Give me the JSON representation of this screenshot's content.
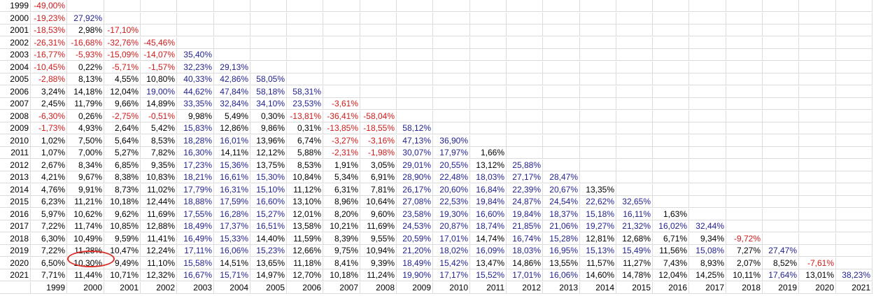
{
  "colors": {
    "negative": "#d11a1a",
    "high": "#1f1f8f",
    "normal": "#000000",
    "highlight_circle": "#d9302a"
  },
  "start_years": [
    "1999",
    "2000",
    "2001",
    "2002",
    "2003",
    "2004",
    "2005",
    "2006",
    "2007",
    "2008",
    "2009",
    "2010",
    "2011",
    "2012",
    "2013",
    "2014",
    "2015",
    "2016",
    "2017",
    "2018",
    "2019",
    "2020",
    "2021"
  ],
  "rows": [
    {
      "end_year": "1999",
      "values": [
        "-49,00%"
      ]
    },
    {
      "end_year": "2000",
      "values": [
        "-19,23%",
        "27,92%"
      ]
    },
    {
      "end_year": "2001",
      "values": [
        "-18,53%",
        "2,98%",
        "-17,10%"
      ]
    },
    {
      "end_year": "2002",
      "values": [
        "-26,31%",
        "-16,68%",
        "-32,76%",
        "-45,46%"
      ]
    },
    {
      "end_year": "2003",
      "values": [
        "-16,77%",
        "-5,93%",
        "-15,09%",
        "-14,07%",
        "35,40%"
      ]
    },
    {
      "end_year": "2004",
      "values": [
        "-10,45%",
        "0,22%",
        "-5,71%",
        "-1,57%",
        "32,23%",
        "29,13%"
      ]
    },
    {
      "end_year": "2005",
      "values": [
        "-2,88%",
        "8,13%",
        "4,55%",
        "10,80%",
        "40,33%",
        "42,86%",
        "58,05%"
      ]
    },
    {
      "end_year": "2006",
      "values": [
        "3,24%",
        "14,18%",
        "12,04%",
        "19,00%",
        "44,62%",
        "47,84%",
        "58,18%",
        "58,31%"
      ]
    },
    {
      "end_year": "2007",
      "values": [
        "2,45%",
        "11,79%",
        "9,66%",
        "14,89%",
        "33,35%",
        "32,84%",
        "34,10%",
        "23,53%",
        "-3,61%"
      ]
    },
    {
      "end_year": "2008",
      "values": [
        "-6,30%",
        "0,26%",
        "-2,75%",
        "-0,51%",
        "9,98%",
        "5,49%",
        "0,30%",
        "-13,81%",
        "-36,41%",
        "-58,04%"
      ]
    },
    {
      "end_year": "2009",
      "values": [
        "-1,73%",
        "4,93%",
        "2,64%",
        "5,42%",
        "15,83%",
        "12,86%",
        "9,86%",
        "0,31%",
        "-13,85%",
        "-18,55%",
        "58,12%"
      ]
    },
    {
      "end_year": "2010",
      "values": [
        "1,02%",
        "7,50%",
        "5,64%",
        "8,53%",
        "18,28%",
        "16,01%",
        "13,96%",
        "6,74%",
        "-3,27%",
        "-3,16%",
        "47,13%",
        "36,90%"
      ]
    },
    {
      "end_year": "2011",
      "values": [
        "1,07%",
        "7,00%",
        "5,27%",
        "7,82%",
        "16,30%",
        "14,11%",
        "12,12%",
        "5,88%",
        "-2,31%",
        "-1,98%",
        "30,07%",
        "17,97%",
        "1,66%"
      ]
    },
    {
      "end_year": "2012",
      "values": [
        "2,67%",
        "8,34%",
        "6,85%",
        "9,35%",
        "17,23%",
        "15,36%",
        "13,75%",
        "8,53%",
        "1,91%",
        "3,05%",
        "29,01%",
        "20,55%",
        "13,12%",
        "25,88%"
      ]
    },
    {
      "end_year": "2013",
      "values": [
        "4,21%",
        "9,67%",
        "8,38%",
        "10,83%",
        "18,21%",
        "16,61%",
        "15,30%",
        "10,84%",
        "5,34%",
        "6,91%",
        "28,90%",
        "22,48%",
        "18,03%",
        "27,17%",
        "28,47%"
      ]
    },
    {
      "end_year": "2014",
      "values": [
        "4,76%",
        "9,91%",
        "8,73%",
        "11,02%",
        "17,79%",
        "16,31%",
        "15,10%",
        "11,12%",
        "6,31%",
        "7,81%",
        "26,17%",
        "20,60%",
        "16,84%",
        "22,39%",
        "20,67%",
        "13,35%"
      ]
    },
    {
      "end_year": "2015",
      "values": [
        "6,23%",
        "11,21%",
        "10,18%",
        "12,44%",
        "18,88%",
        "17,59%",
        "16,60%",
        "13,10%",
        "8,96%",
        "10,64%",
        "27,08%",
        "22,53%",
        "19,84%",
        "24,87%",
        "24,54%",
        "22,62%",
        "32,65%"
      ]
    },
    {
      "end_year": "2016",
      "values": [
        "5,97%",
        "10,62%",
        "9,62%",
        "11,69%",
        "17,55%",
        "16,28%",
        "15,27%",
        "12,01%",
        "8,20%",
        "9,60%",
        "23,58%",
        "19,30%",
        "16,60%",
        "19,84%",
        "18,37%",
        "15,18%",
        "16,11%",
        "1,63%"
      ]
    },
    {
      "end_year": "2017",
      "values": [
        "7,22%",
        "11,74%",
        "10,85%",
        "12,88%",
        "18,49%",
        "17,37%",
        "16,51%",
        "13,58%",
        "10,21%",
        "11,69%",
        "24,53%",
        "20,87%",
        "18,74%",
        "21,85%",
        "21,06%",
        "19,27%",
        "21,32%",
        "16,02%",
        "32,44%"
      ]
    },
    {
      "end_year": "2018",
      "values": [
        "6,30%",
        "10,49%",
        "9,59%",
        "11,41%",
        "16,49%",
        "15,33%",
        "14,40%",
        "11,59%",
        "8,39%",
        "9,55%",
        "20,59%",
        "17,01%",
        "14,74%",
        "16,74%",
        "15,28%",
        "12,81%",
        "12,68%",
        "6,71%",
        "9,34%",
        "-9,72%"
      ]
    },
    {
      "end_year": "2019",
      "values": [
        "7,22%",
        "11,28%",
        "10,47%",
        "12,24%",
        "17,11%",
        "16,06%",
        "15,23%",
        "12,66%",
        "9,75%",
        "10,94%",
        "21,20%",
        "18,02%",
        "16,09%",
        "18,03%",
        "16,95%",
        "15,13%",
        "15,49%",
        "11,56%",
        "15,08%",
        "7,27%",
        "27,47%"
      ]
    },
    {
      "end_year": "2020",
      "values": [
        "6,50%",
        "10,30%",
        "9,49%",
        "11,10%",
        "15,58%",
        "14,51%",
        "13,65%",
        "11,18%",
        "8,41%",
        "9,39%",
        "18,49%",
        "15,42%",
        "13,47%",
        "14,86%",
        "13,55%",
        "11,57%",
        "11,27%",
        "7,43%",
        "8,93%",
        "2,07%",
        "8,52%",
        "-7,61%"
      ]
    },
    {
      "end_year": "2021",
      "values": [
        "7,71%",
        "11,44%",
        "10,71%",
        "12,32%",
        "16,67%",
        "15,71%",
        "14,97%",
        "12,70%",
        "10,18%",
        "11,24%",
        "19,90%",
        "17,17%",
        "15,52%",
        "17,01%",
        "16,06%",
        "14,60%",
        "14,78%",
        "12,04%",
        "14,25%",
        "10,11%",
        "17,64%",
        "13,01%",
        "38,23%"
      ]
    }
  ],
  "highlighted_cell": {
    "end_year": "2020",
    "start_year": "2000",
    "value": "10,30%"
  }
}
